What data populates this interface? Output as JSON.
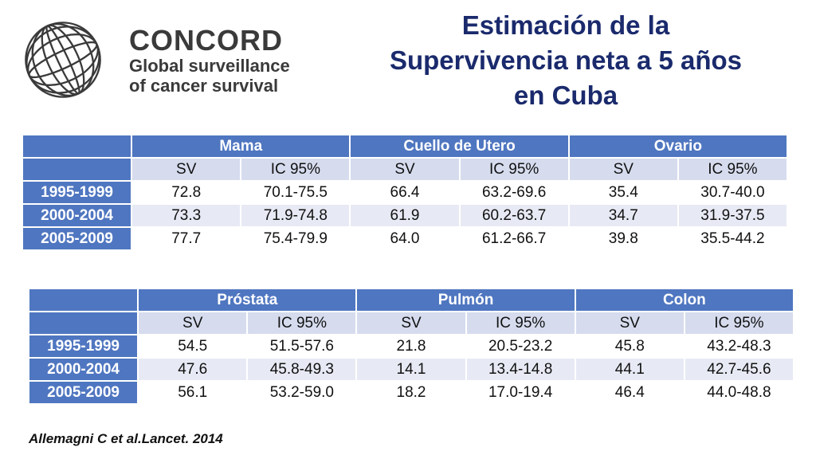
{
  "logo": {
    "name": "CONCORD",
    "tagline_1": "Global surveillance",
    "tagline_2": "of cancer survival",
    "icon": "globe-icon"
  },
  "title": {
    "line1": "Estimación de la",
    "line2": "Supervivencia neta a 5 años",
    "line3": "en Cuba"
  },
  "tables": [
    {
      "cancers": [
        "Mama",
        "Cuello de Utero",
        "Ovario"
      ],
      "subheaders": [
        "SV",
        "IC 95%",
        "SV",
        "IC 95%",
        "SV",
        "IC 95%"
      ],
      "rows": [
        {
          "period": "1995-1999",
          "values": [
            "72.8",
            "70.1-75.5",
            "66.4",
            "63.2-69.6",
            "35.4",
            "30.7-40.0"
          ]
        },
        {
          "period": "2000-2004",
          "values": [
            "73.3",
            "71.9-74.8",
            "61.9",
            "60.2-63.7",
            "34.7",
            "31.9-37.5"
          ]
        },
        {
          "period": "2005-2009",
          "values": [
            "77.7",
            "75.4-79.9",
            "64.0",
            "61.2-66.7",
            "39.8",
            "35.5-44.2"
          ]
        }
      ]
    },
    {
      "cancers": [
        "Próstata",
        "Pulmón",
        "Colon"
      ],
      "subheaders": [
        "SV",
        "IC 95%",
        "SV",
        "IC 95%",
        "SV",
        "IC 95%"
      ],
      "rows": [
        {
          "period": "1995-1999",
          "values": [
            "54.5",
            "51.5-57.6",
            "21.8",
            "20.5-23.2",
            "45.8",
            "43.2-48.3"
          ]
        },
        {
          "period": "2000-2004",
          "values": [
            "47.6",
            "45.8-49.3",
            "14.1",
            "13.4-14.8",
            "44.1",
            "42.7-45.6"
          ]
        },
        {
          "period": "2005-2009",
          "values": [
            "56.1",
            "53.2-59.0",
            "18.2",
            "17.0-19.4",
            "46.4",
            "44.0-48.8"
          ]
        }
      ]
    }
  ],
  "citation": "Allemagni C et al.Lancet. 2014",
  "colors": {
    "header_blue": "#4f76c0",
    "subheader": "#d6dcee",
    "title_navy": "#1a2a6c"
  }
}
